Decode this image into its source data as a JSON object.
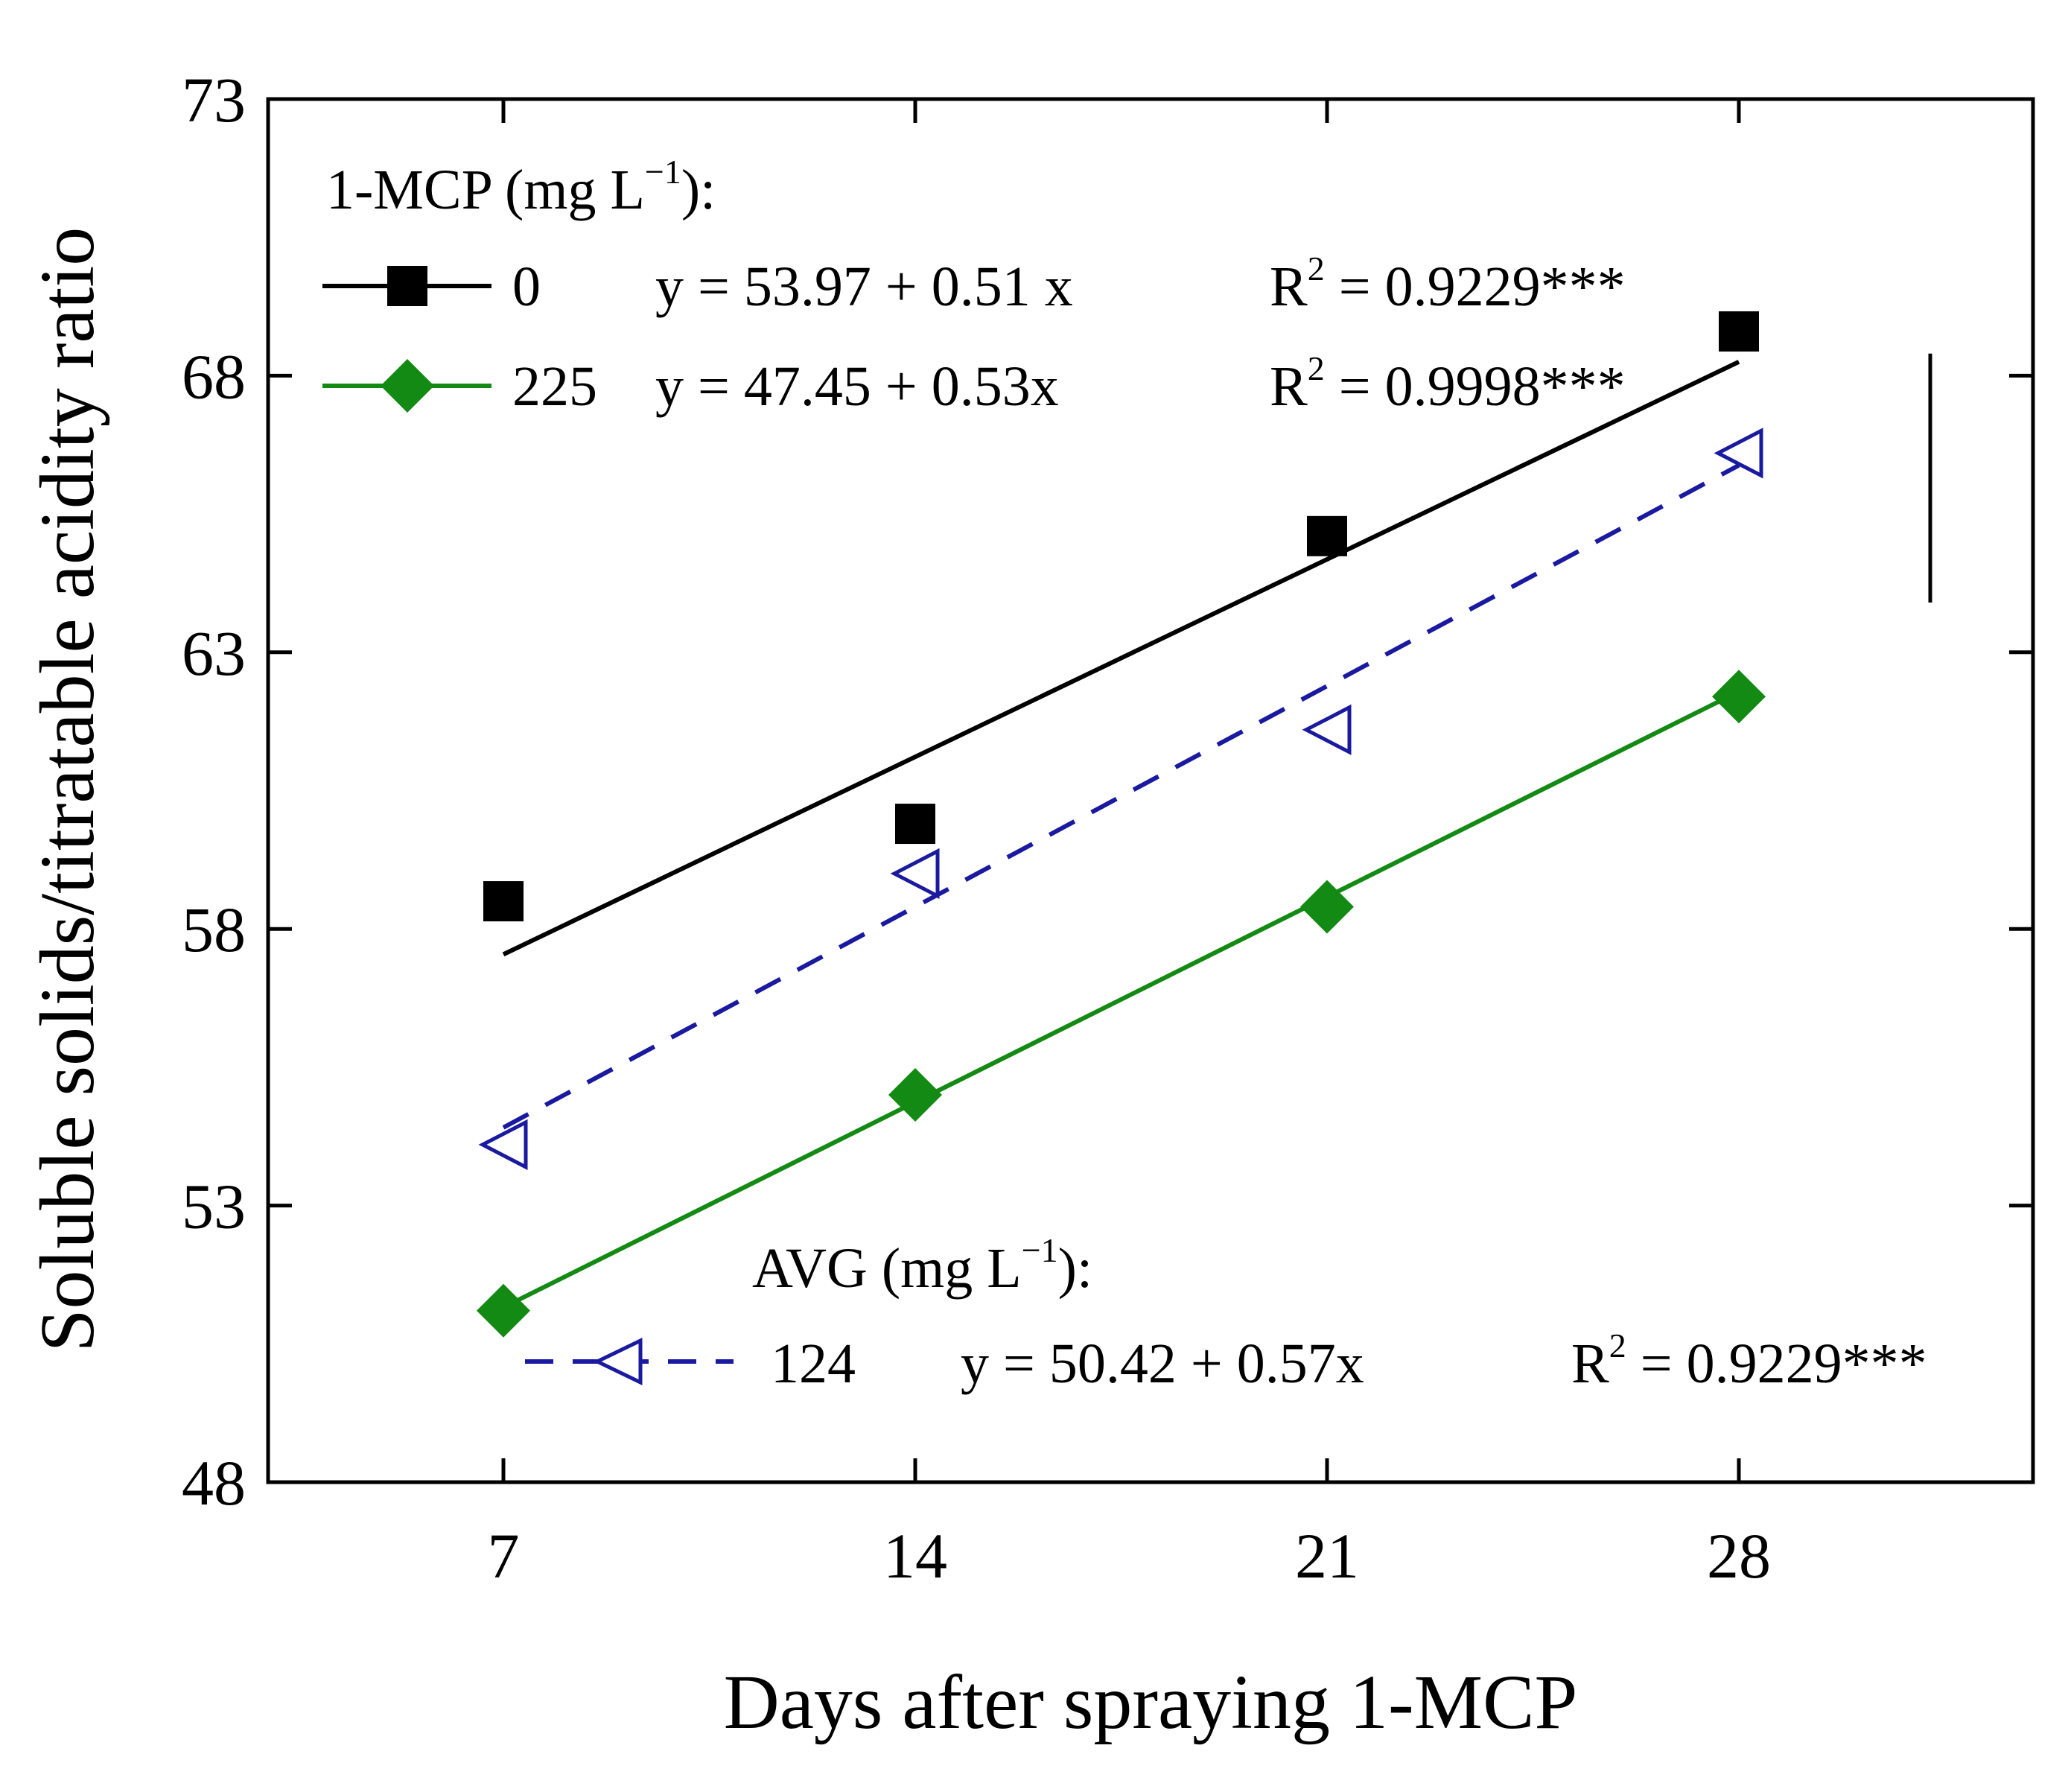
{
  "chart_data": {
    "type": "scatter",
    "xlabel": "Days after spraying 1-MCP",
    "ylabel": "Soluble solids/titratable acidity ratio",
    "x_ticks": [
      7,
      14,
      21,
      28
    ],
    "y_ticks": [
      48,
      53,
      58,
      63,
      68,
      73
    ],
    "xlim": [
      3,
      33
    ],
    "ylim": [
      48,
      73
    ],
    "grid": false,
    "series": [
      {
        "name": "0",
        "group": "1-MCP",
        "marker": "square",
        "color": "#000000",
        "line": "solid",
        "x": [
          7,
          14,
          21,
          28
        ],
        "y": [
          58.5,
          59.9,
          65.1,
          68.8
        ],
        "fit": {
          "intercept": 53.97,
          "slope": 0.51
        }
      },
      {
        "name": "225",
        "group": "1-MCP",
        "marker": "diamond",
        "color": "#138a13",
        "line": "solid",
        "x": [
          7,
          14,
          21,
          28
        ],
        "y": [
          51.1,
          55.0,
          58.4,
          62.2
        ],
        "fit": {
          "intercept": 47.45,
          "slope": 0.53
        }
      },
      {
        "name": "124",
        "group": "AVG",
        "marker": "open-triangle-left",
        "color": "#1a1aa0",
        "line": "dashed",
        "x": [
          7,
          14,
          21,
          28
        ],
        "y": [
          54.1,
          59.0,
          61.6,
          66.6
        ],
        "fit": {
          "intercept": 50.42,
          "slope": 0.57
        }
      }
    ],
    "error_bar": {
      "y_low": 63.9,
      "y_high": 68.4
    },
    "legend": {
      "mcp_header": "1-MCP (mg L",
      "mcp_header_sup": "−1",
      "mcp_header_end": "):",
      "avg_header": "AVG (mg L",
      "avg_header_sup": "−1",
      "avg_header_end": "):",
      "entries": [
        {
          "label": "0",
          "equation": "y = 53.97 + 0.51 x",
          "r2_prefix": "R",
          "r2_sup": "2",
          "r2_value": " = 0.9229***"
        },
        {
          "label": "225",
          "equation": "y = 47.45 + 0.53x",
          "r2_prefix": "R",
          "r2_sup": "2",
          "r2_value": " = 0.9998***"
        },
        {
          "label": "124",
          "equation": "y = 50.42 + 0.57x",
          "r2_prefix": "R",
          "r2_sup": "2",
          "r2_value": " = 0.9229***"
        }
      ]
    }
  }
}
